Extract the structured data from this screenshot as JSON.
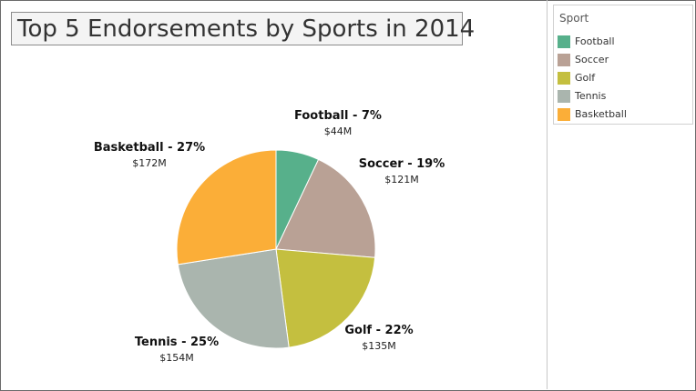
{
  "chart_data": {
    "type": "pie",
    "title": "Top 5 Endorsements by Sports in 2014",
    "slices": [
      {
        "name": "Football",
        "percent": 7,
        "label": "Football - 7%",
        "value_label": "$44M",
        "value": 44,
        "color": "#57b08b"
      },
      {
        "name": "Soccer",
        "percent": 19,
        "label": "Soccer - 19%",
        "value_label": "$121M",
        "value": 121,
        "color": "#b9a195"
      },
      {
        "name": "Golf",
        "percent": 22,
        "label": "Golf - 22%",
        "value_label": "$135M",
        "value": 135,
        "color": "#c4bf3f"
      },
      {
        "name": "Tennis",
        "percent": 25,
        "label": "Tennis - 25%",
        "value_label": "$154M",
        "value": 154,
        "color": "#aab5ae"
      },
      {
        "name": "Basketball",
        "percent": 27,
        "label": "Basketball - 27%",
        "value_label": "$172M",
        "value": 172,
        "color": "#fbae38"
      }
    ],
    "legend": {
      "title": "Sport",
      "placement": "top-right",
      "items": [
        "Football",
        "Soccer",
        "Golf",
        "Tennis",
        "Basketball"
      ]
    }
  }
}
